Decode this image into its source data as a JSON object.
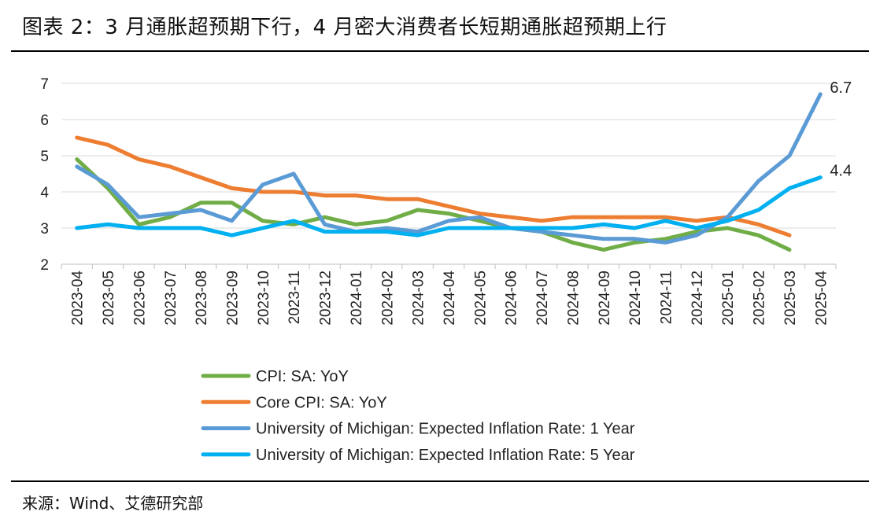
{
  "header": {
    "title": "图表 2：3 月通胀超预期下行，4 月密大消费者长短期通胀超预期上行"
  },
  "footer": {
    "source": "来源：Wind、艾德研究部"
  },
  "chart_data": {
    "type": "line",
    "categories": [
      "2023-04",
      "2023-05",
      "2023-06",
      "2023-07",
      "2023-08",
      "2023-09",
      "2023-10",
      "2023-11",
      "2023-12",
      "2024-01",
      "2024-02",
      "2024-03",
      "2024-04",
      "2024-05",
      "2024-06",
      "2024-07",
      "2024-08",
      "2024-09",
      "2024-10",
      "2024-11",
      "2024-12",
      "2025-01",
      "2025-02",
      "2025-03",
      "2025-04"
    ],
    "ylim": [
      2,
      7
    ],
    "yticks": [
      2,
      3,
      4,
      5,
      6,
      7
    ],
    "grid": true,
    "legend_position": "bottom",
    "series": [
      {
        "name": "CPI: SA: YoY",
        "color": "#70ad47",
        "values": [
          4.9,
          4.1,
          3.1,
          3.3,
          3.7,
          3.7,
          3.2,
          3.1,
          3.3,
          3.1,
          3.2,
          3.5,
          3.4,
          3.2,
          3.0,
          2.9,
          2.6,
          2.4,
          2.6,
          2.7,
          2.9,
          3.0,
          2.8,
          2.4,
          null
        ]
      },
      {
        "name": "Core CPI: SA: YoY",
        "color": "#ed7d31",
        "values": [
          5.5,
          5.3,
          4.9,
          4.7,
          4.4,
          4.1,
          4.0,
          4.0,
          3.9,
          3.9,
          3.8,
          3.8,
          3.6,
          3.4,
          3.3,
          3.2,
          3.3,
          3.3,
          3.3,
          3.3,
          3.2,
          3.3,
          3.1,
          2.8,
          null
        ]
      },
      {
        "name": "University of Michigan: Expected Inflation Rate: 1 Year",
        "color": "#5b9bd5",
        "values": [
          4.7,
          4.2,
          3.3,
          3.4,
          3.5,
          3.2,
          4.2,
          4.5,
          3.1,
          2.9,
          3.0,
          2.9,
          3.2,
          3.3,
          3.0,
          2.9,
          2.8,
          2.7,
          2.7,
          2.6,
          2.8,
          3.3,
          4.3,
          5.0,
          6.7
        ]
      },
      {
        "name": "University of Michigan: Expected Inflation Rate: 5 Year",
        "color": "#00b0f0",
        "values": [
          3.0,
          3.1,
          3.0,
          3.0,
          3.0,
          2.8,
          3.0,
          3.2,
          2.9,
          2.9,
          2.9,
          2.8,
          3.0,
          3.0,
          3.0,
          3.0,
          3.0,
          3.1,
          3.0,
          3.2,
          3.0,
          3.2,
          3.5,
          4.1,
          4.4
        ]
      }
    ],
    "annotations": [
      {
        "text": "6.7",
        "series_index": 2,
        "point_index": 24
      },
      {
        "text": "4.4",
        "series_index": 3,
        "point_index": 24
      }
    ]
  }
}
